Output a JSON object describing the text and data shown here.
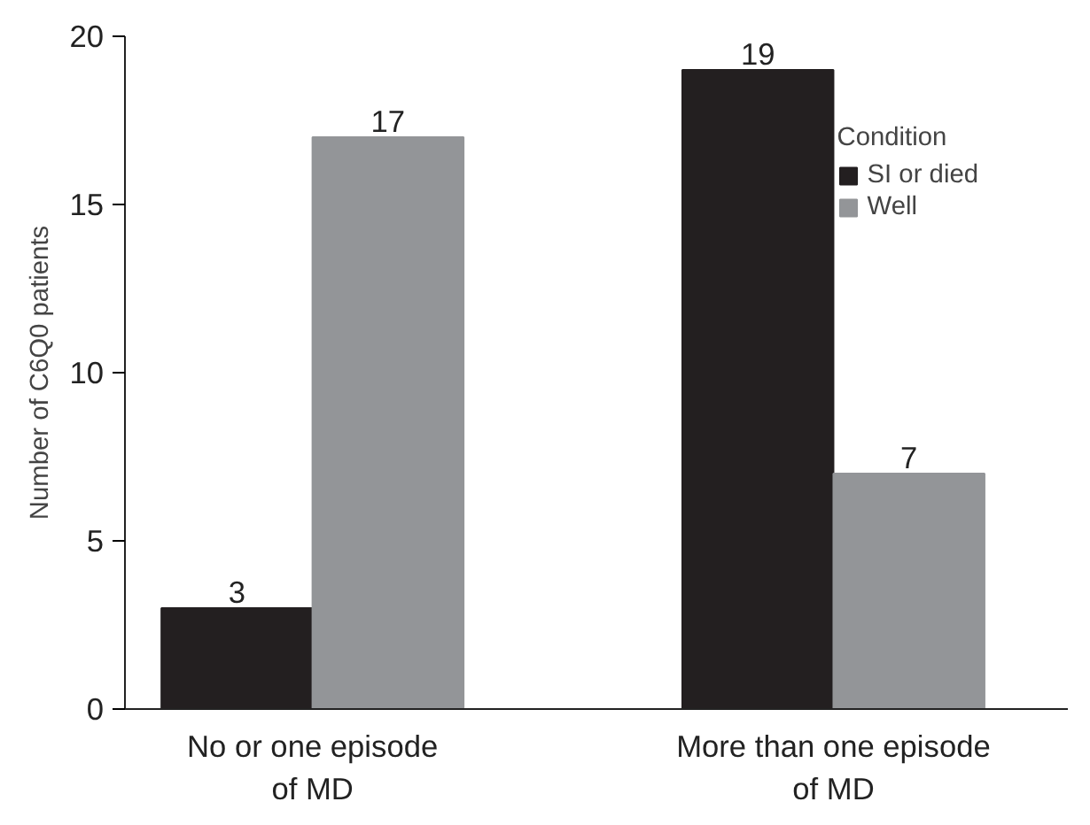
{
  "chart_data": {
    "type": "bar",
    "ylabel": "Number of C6Q0 patients",
    "legend_title": "Condition",
    "categories": [
      "No or one episode\nof MD",
      "More than one episode\nof MD"
    ],
    "series": [
      {
        "name": "SI or died",
        "color": "#231f20",
        "values": [
          3,
          19
        ]
      },
      {
        "name": "Well",
        "color": "#939598",
        "values": [
          17,
          7
        ]
      }
    ],
    "ylim": [
      0,
      20
    ],
    "yticks": [
      0,
      5,
      10,
      15,
      20
    ],
    "grid": false,
    "legend": "top right",
    "data_labels": true
  }
}
